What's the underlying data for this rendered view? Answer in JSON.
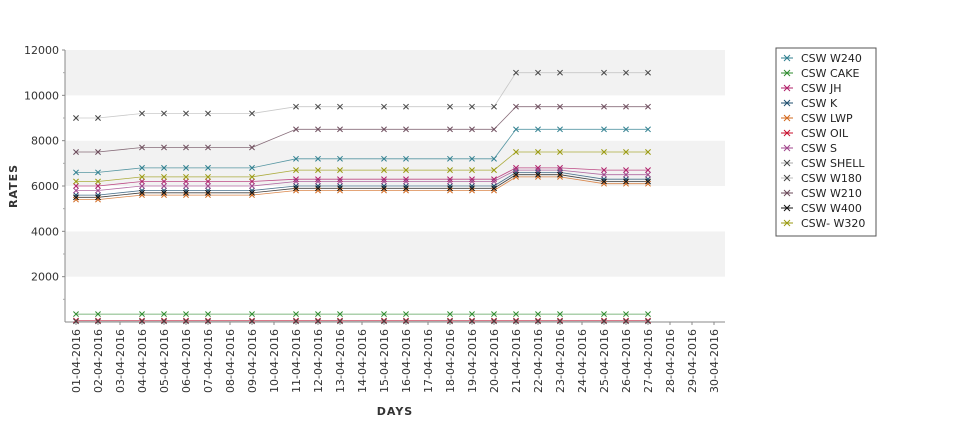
{
  "chart_data": {
    "type": "line",
    "xlabel": "DAYS",
    "ylabel": "RATES",
    "ylim": [
      0,
      12000
    ],
    "yticks": [
      2000,
      4000,
      6000,
      8000,
      10000,
      12000
    ],
    "grid": "alternating horizontal bands",
    "legend_position": "right",
    "x_axis_labels": [
      "01-04-2016",
      "02-04-2016",
      "03-04-2016",
      "04-04-2016",
      "05-04-2016",
      "06-04-2016",
      "07-04-2016",
      "08-04-2016",
      "09-04-2016",
      "10-04-2016",
      "11-04-2016",
      "12-04-2016",
      "13-04-2016",
      "14-04-2016",
      "15-04-2016",
      "16-04-2016",
      "17-04-2016",
      "18-04-2016",
      "19-04-2016",
      "20-04-2016",
      "21-04-2016",
      "22-04-2016",
      "23-04-2016",
      "24-04-2016",
      "25-04-2016",
      "26-04-2016",
      "27-04-2016",
      "28-04-2016",
      "29-04-2016",
      "30-04-2016"
    ],
    "x": [
      "01-04-2016",
      "02-04-2016",
      "04-04-2016",
      "05-04-2016",
      "06-04-2016",
      "07-04-2016",
      "09-04-2016",
      "11-04-2016",
      "12-04-2016",
      "13-04-2016",
      "15-04-2016",
      "16-04-2016",
      "18-04-2016",
      "19-04-2016",
      "20-04-2016",
      "21-04-2016",
      "22-04-2016",
      "23-04-2016",
      "25-04-2016",
      "26-04-2016",
      "27-04-2016"
    ],
    "series": [
      {
        "name": "CSW  W240",
        "color": "#2f7f8f",
        "values": [
          6600,
          6600,
          6800,
          6800,
          6800,
          6800,
          6800,
          7200,
          7200,
          7200,
          7200,
          7200,
          7200,
          7200,
          7200,
          8500,
          8500,
          8500,
          8500,
          8500,
          8500
        ]
      },
      {
        "name": "CSW CAKE",
        "color": "#2e8b2e",
        "values": [
          350,
          350,
          350,
          350,
          350,
          350,
          350,
          350,
          350,
          350,
          350,
          350,
          350,
          350,
          350,
          350,
          350,
          350,
          350,
          350,
          350
        ]
      },
      {
        "name": "CSW JH",
        "color": "#b0206a",
        "values": [
          6000,
          6000,
          6200,
          6200,
          6200,
          6200,
          6200,
          6300,
          6300,
          6300,
          6300,
          6300,
          6300,
          6300,
          6300,
          6800,
          6800,
          6800,
          6700,
          6700,
          6700
        ]
      },
      {
        "name": "CSW K",
        "color": "#1f4f6f",
        "values": [
          5600,
          5600,
          5800,
          5800,
          5800,
          5800,
          5800,
          6000,
          6000,
          6000,
          6000,
          6000,
          6000,
          6000,
          6000,
          6600,
          6600,
          6600,
          6300,
          6300,
          6300
        ]
      },
      {
        "name": "CSW LWP",
        "color": "#d2691e",
        "values": [
          5400,
          5400,
          5600,
          5600,
          5600,
          5600,
          5600,
          5800,
          5800,
          5800,
          5800,
          5800,
          5800,
          5800,
          5800,
          6400,
          6400,
          6400,
          6100,
          6100,
          6100
        ]
      },
      {
        "name": "CSW OIL",
        "color": "#c8102e",
        "values": [
          60,
          60,
          60,
          60,
          60,
          60,
          60,
          60,
          60,
          60,
          60,
          60,
          60,
          60,
          60,
          60,
          60,
          60,
          60,
          60,
          60
        ]
      },
      {
        "name": "CSW S",
        "color": "#a0468c",
        "values": [
          5800,
          5800,
          6000,
          6000,
          6000,
          6000,
          6000,
          6200,
          6200,
          6200,
          6200,
          6200,
          6200,
          6200,
          6200,
          6700,
          6700,
          6700,
          6500,
          6500,
          6500
        ]
      },
      {
        "name": "CSW SHELL",
        "color": "#aaaaaa",
        "values": [
          30,
          30,
          30,
          30,
          30,
          30,
          30,
          30,
          30,
          30,
          30,
          30,
          30,
          30,
          30,
          30,
          30,
          30,
          30,
          30,
          30
        ]
      },
      {
        "name": "CSW W180",
        "color": "#bbbbbb",
        "values": [
          9000,
          9000,
          9200,
          9200,
          9200,
          9200,
          9200,
          9500,
          9500,
          9500,
          9500,
          9500,
          9500,
          9500,
          9500,
          11000,
          11000,
          11000,
          11000,
          11000,
          11000
        ]
      },
      {
        "name": "CSW W210",
        "color": "#6b4a5a",
        "values": [
          7500,
          7500,
          7700,
          7700,
          7700,
          7700,
          7700,
          8500,
          8500,
          8500,
          8500,
          8500,
          8500,
          8500,
          8500,
          9500,
          9500,
          9500,
          9500,
          9500,
          9500
        ]
      },
      {
        "name": "CSW W400",
        "color": "#111111",
        "values": [
          5500,
          5500,
          5700,
          5700,
          5700,
          5700,
          5700,
          5900,
          5900,
          5900,
          5900,
          5900,
          5900,
          5900,
          5900,
          6500,
          6500,
          6500,
          6200,
          6200,
          6200
        ]
      },
      {
        "name": "CSW- W320",
        "color": "#9a9a10",
        "values": [
          6200,
          6200,
          6400,
          6400,
          6400,
          6400,
          6400,
          6700,
          6700,
          6700,
          6700,
          6700,
          6700,
          6700,
          6700,
          7500,
          7500,
          7500,
          7500,
          7500,
          7500
        ]
      }
    ]
  }
}
